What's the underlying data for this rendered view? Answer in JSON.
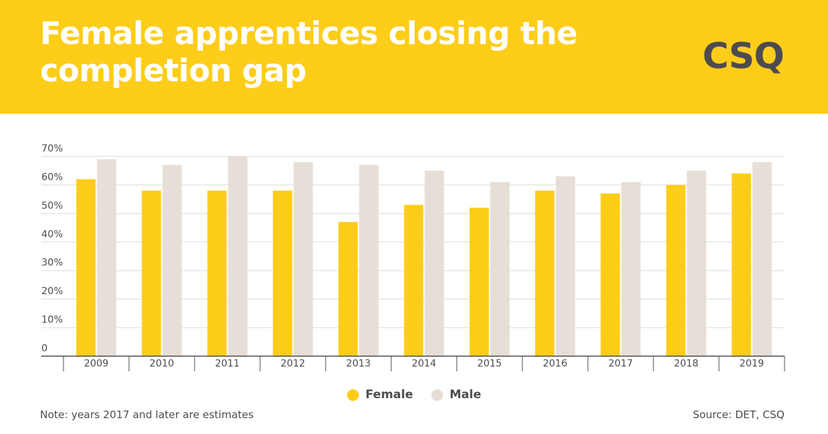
{
  "header": {
    "title": "Female apprentices closing the completion gap",
    "logo": "CSQ"
  },
  "colors": {
    "header_bg": "#fecd1a",
    "female": "#fecd1a",
    "male": "#e6dfd7",
    "text": "#4d4b4f",
    "grid": "#e6e6e6"
  },
  "chart_data": {
    "type": "bar",
    "title": "Female apprentices closing the completion gap",
    "categories": [
      "2009",
      "2010",
      "2011",
      "2012",
      "2013",
      "2014",
      "2015",
      "2016",
      "2017",
      "2018",
      "2019"
    ],
    "series": [
      {
        "name": "Female",
        "values": [
          62,
          58,
          58,
          58,
          47,
          53,
          52,
          58,
          57,
          60,
          64
        ]
      },
      {
        "name": "Male",
        "values": [
          69,
          67,
          70,
          68,
          67,
          65,
          61,
          63,
          61,
          65,
          68
        ]
      }
    ],
    "ylim": [
      0,
      70
    ],
    "yticks": [
      0,
      10,
      20,
      30,
      40,
      50,
      60,
      70
    ],
    "ytick_labels": [
      "0",
      "10%",
      "20%",
      "30%",
      "40%",
      "50%",
      "60%",
      "70%"
    ],
    "grid": true,
    "legend_placement": "bottom-center",
    "xlabel": "",
    "ylabel": ""
  },
  "legend": {
    "female": "Female",
    "male": "Male"
  },
  "footer": {
    "note": "Note: years 2017 and later are estimates",
    "source": "Source: DET, CSQ"
  }
}
